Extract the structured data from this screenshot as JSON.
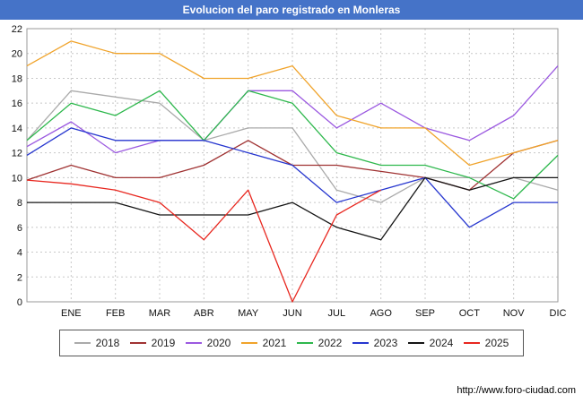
{
  "title": "Evolucion del paro registrado en Monleras",
  "footer": {
    "url": "http://www.foro-ciudad.com"
  },
  "colors": {
    "title_bar": "#4573c8",
    "grid": "#c8c8c8",
    "plot_border": "#999999"
  },
  "chart_data": {
    "type": "line",
    "title": "Evolucion del paro registrado en Monleras",
    "xlabel": "",
    "ylabel": "",
    "ylim": [
      0,
      22
    ],
    "yticks": [
      0,
      2,
      4,
      6,
      8,
      10,
      12,
      14,
      16,
      18,
      20,
      22
    ],
    "grid": true,
    "legend_position": "bottom",
    "x_labels": [
      "ENE",
      "FEB",
      "MAR",
      "ABR",
      "MAY",
      "JUN",
      "JUL",
      "AGO",
      "SEP",
      "OCT",
      "NOV",
      "DIC"
    ],
    "note": "First value of each series is the unlabeled start point on the left axis edge; following values align with ENE..DIC gridlines.",
    "series": [
      {
        "name": "2018",
        "color": "#aaaaaa",
        "values": [
          13,
          17,
          16.5,
          16,
          13,
          14,
          14,
          9,
          8,
          10,
          10,
          10,
          9
        ]
      },
      {
        "name": "2019",
        "color": "#a03333",
        "values": [
          9.8,
          11,
          10,
          10,
          11,
          13,
          11,
          11,
          10.5,
          10,
          9,
          12,
          13
        ]
      },
      {
        "name": "2020",
        "color": "#9b59e0",
        "values": [
          12.5,
          14.5,
          12,
          13,
          13,
          17,
          17,
          14,
          16,
          14,
          13,
          15,
          19
        ]
      },
      {
        "name": "2021",
        "color": "#f0a32a",
        "values": [
          19,
          21,
          20,
          20,
          18,
          18,
          19,
          15,
          14,
          14,
          11,
          12,
          13
        ]
      },
      {
        "name": "2022",
        "color": "#2eb84d",
        "values": [
          13,
          16,
          15,
          17,
          13,
          17,
          16,
          12,
          11,
          11,
          10,
          8.3,
          11.8
        ]
      },
      {
        "name": "2023",
        "color": "#2636cf",
        "values": [
          11.8,
          14,
          13,
          13,
          13,
          12,
          11,
          8,
          9,
          10,
          6,
          8,
          8
        ]
      },
      {
        "name": "2024",
        "color": "#151515",
        "values": [
          8,
          8,
          8,
          7,
          7,
          7,
          8,
          6,
          5,
          10,
          9,
          10,
          10
        ]
      },
      {
        "name": "2025",
        "color": "#e8271f",
        "values": [
          9.8,
          9.5,
          9,
          8,
          5,
          9,
          0,
          7,
          9
        ]
      }
    ]
  }
}
